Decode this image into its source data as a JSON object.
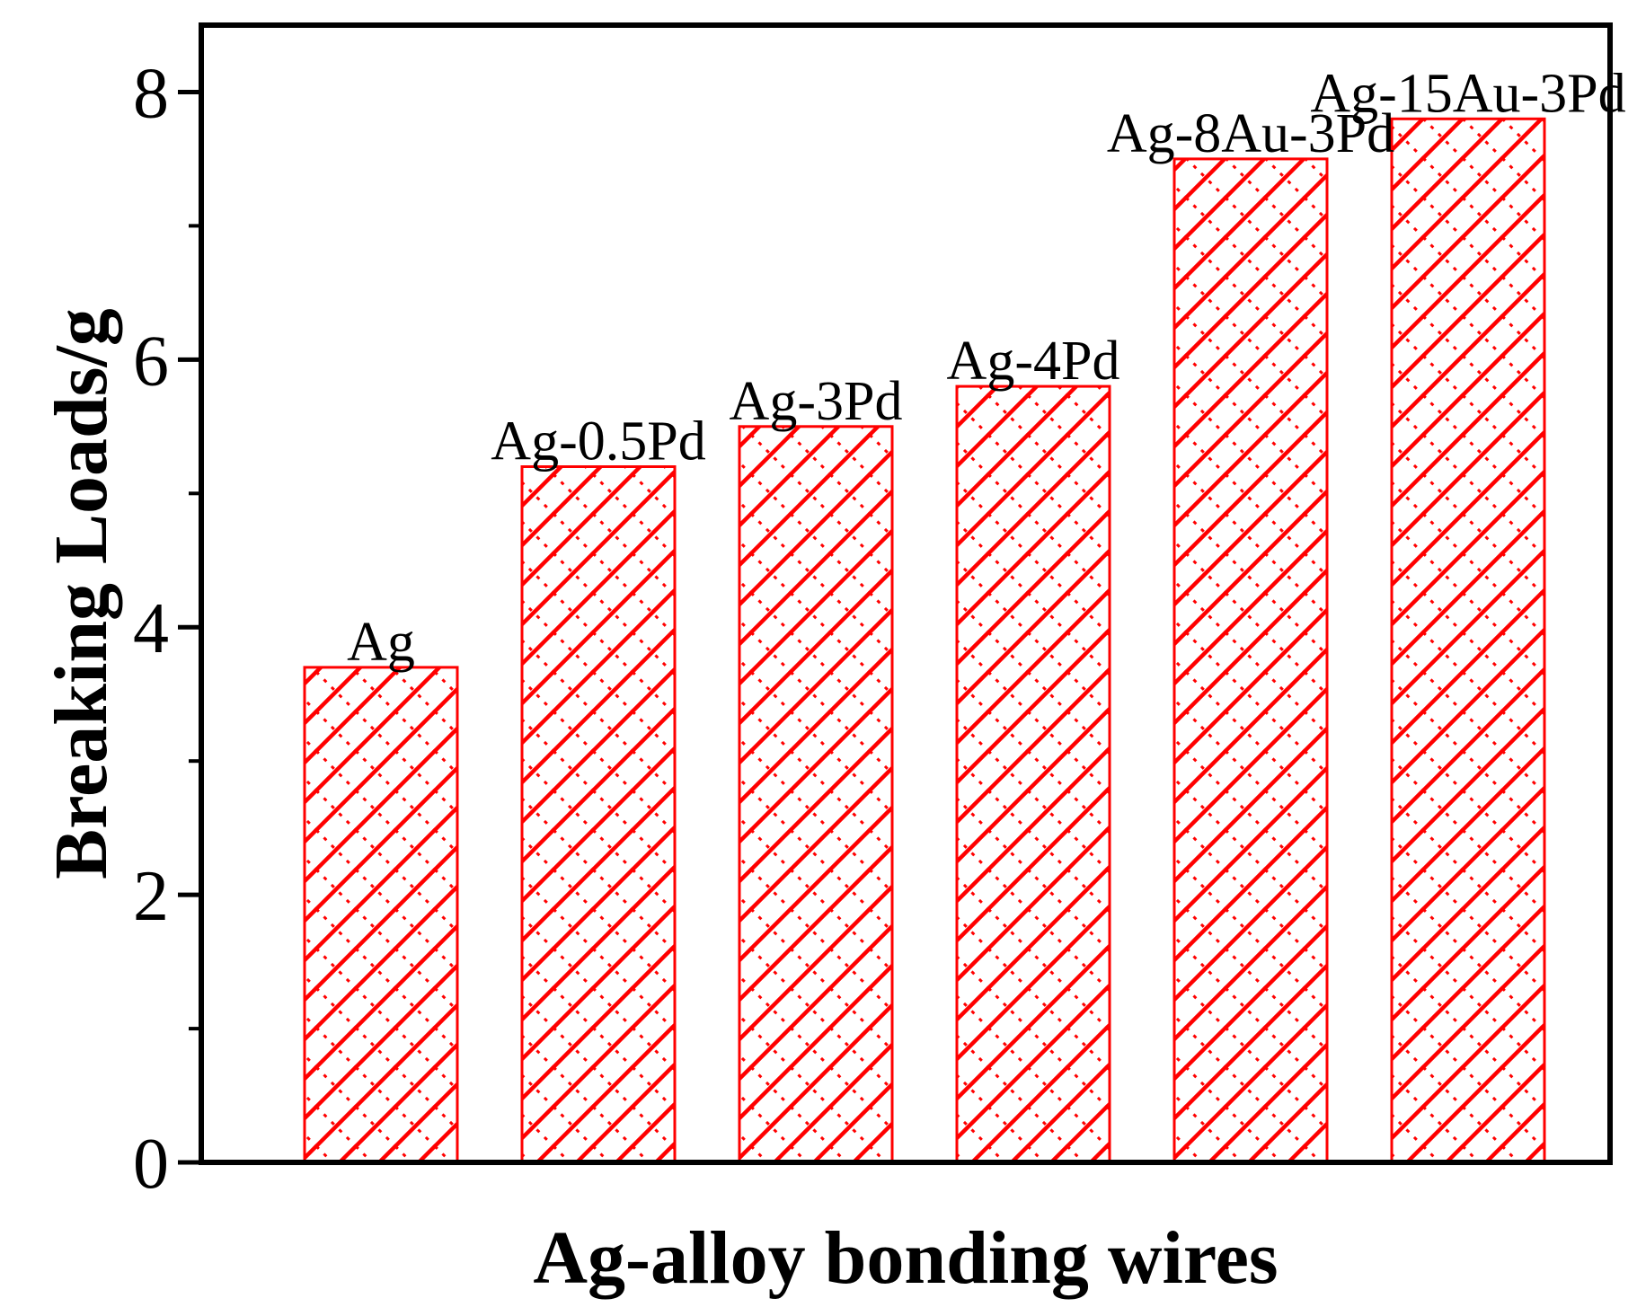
{
  "chart_data": {
    "type": "bar",
    "title": "",
    "xlabel": "Ag-alloy bonding wires",
    "ylabel": "Breaking Loads/g",
    "categories": [
      "Ag",
      "Ag-0.5Pd",
      "Ag-3Pd",
      "Ag-4Pd",
      "Ag-8Au-3Pd",
      "Ag-15Au-3Pd"
    ],
    "values": [
      3.7,
      5.2,
      5.5,
      5.8,
      7.5,
      7.8
    ],
    "ylim": [
      0,
      8.5
    ],
    "yticks": [
      0,
      2,
      4,
      6,
      8
    ],
    "yminor_ticks": [
      1,
      3,
      5,
      7
    ],
    "ytick_labels": [
      "0",
      "2",
      "4",
      "6",
      "8"
    ],
    "bar_label_position": "above-bar",
    "xtick_labels_shown": false,
    "grid": false,
    "legend": "none",
    "bar_color": "#ff0000",
    "bar_fill": "hatched",
    "frame": "boxed"
  }
}
